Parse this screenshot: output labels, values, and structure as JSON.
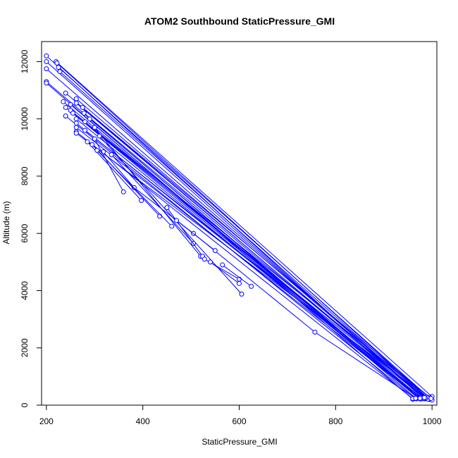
{
  "chart_data": {
    "type": "line",
    "title": "ATOM2 Southbound StaticPressure_GMI",
    "xlabel": "StaticPressure_GMI",
    "ylabel": "Altitude (m)",
    "xlim": [
      190,
      1010
    ],
    "ylim": [
      0,
      12700
    ],
    "x_ticks": [
      200,
      400,
      600,
      800,
      1000
    ],
    "y_ticks": [
      0,
      2000,
      4000,
      6000,
      8000,
      10000,
      12000
    ],
    "grid": false,
    "series_color": "#0000ff",
    "marker": "open-circle",
    "series": [
      {
        "points": [
          [
            200,
            12200
          ],
          [
            980,
            250
          ]
        ]
      },
      {
        "points": [
          [
            200,
            12000
          ],
          [
            985,
            220
          ]
        ]
      },
      {
        "points": [
          [
            200,
            11750
          ],
          [
            990,
            230
          ]
        ]
      },
      {
        "points": [
          [
            200,
            11300
          ],
          [
            970,
            260
          ]
        ]
      },
      {
        "points": [
          [
            200,
            11250
          ],
          [
            960,
            210
          ]
        ]
      },
      {
        "points": [
          [
            220,
            12000
          ],
          [
            1000,
            300
          ]
        ]
      },
      {
        "points": [
          [
            222,
            11950
          ],
          [
            995,
            200
          ]
        ]
      },
      {
        "points": [
          [
            225,
            11800
          ],
          [
            1000,
            180
          ]
        ]
      },
      {
        "points": [
          [
            228,
            11650
          ],
          [
            990,
            250
          ]
        ]
      },
      {
        "points": [
          [
            235,
            10600
          ],
          [
            978,
            240
          ]
        ]
      },
      {
        "points": [
          [
            240,
            10900
          ],
          [
            982,
            270
          ]
        ]
      },
      {
        "points": [
          [
            240,
            10400
          ],
          [
            975,
            230
          ]
        ]
      },
      {
        "points": [
          [
            240,
            10100
          ],
          [
            965,
            230
          ]
        ]
      },
      {
        "points": [
          [
            250,
            10500
          ],
          [
            968,
            220
          ]
        ]
      },
      {
        "points": [
          [
            250,
            10300
          ],
          [
            996,
            260
          ]
        ]
      },
      {
        "points": [
          [
            255,
            10200
          ],
          [
            988,
            240
          ]
        ]
      },
      {
        "points": [
          [
            262,
            10700
          ],
          [
            992,
            210
          ]
        ]
      },
      {
        "points": [
          [
            262,
            10550
          ],
          [
            985,
            260
          ]
        ]
      },
      {
        "points": [
          [
            262,
            10000
          ],
          [
            972,
            250
          ]
        ]
      },
      {
        "points": [
          [
            262,
            9850
          ],
          [
            980,
            225
          ]
        ]
      },
      {
        "points": [
          [
            262,
            9700
          ],
          [
            976,
            215
          ]
        ]
      },
      {
        "points": [
          [
            262,
            9550
          ],
          [
            960,
            230
          ]
        ]
      },
      {
        "points": [
          [
            262,
            9500
          ],
          [
            990,
            280
          ]
        ]
      },
      {
        "points": [
          [
            275,
            10400
          ],
          [
            998,
            235
          ]
        ]
      },
      {
        "points": [
          [
            278,
            10200
          ],
          [
            986,
            245
          ]
        ]
      },
      {
        "points": [
          [
            280,
            9900
          ],
          [
            978,
            255
          ]
        ]
      },
      {
        "points": [
          [
            280,
            9600
          ],
          [
            984,
            265
          ]
        ]
      },
      {
        "points": [
          [
            290,
            10000
          ],
          [
            975,
            240
          ]
        ]
      },
      {
        "points": [
          [
            300,
            9700
          ],
          [
            520,
            5200
          ]
        ]
      },
      {
        "points": [
          [
            310,
            9400
          ],
          [
            605,
            3880
          ]
        ]
      },
      {
        "points": [
          [
            318,
            8850
          ],
          [
            382,
            7600
          ],
          [
            505,
            6000
          ],
          [
            757,
            2550
          ],
          [
            966,
            240
          ]
        ]
      },
      {
        "points": [
          [
            300,
            9300
          ],
          [
            360,
            7450
          ]
        ]
      },
      {
        "points": [
          [
            285,
            9200
          ],
          [
            397,
            7150
          ]
        ]
      },
      {
        "points": [
          [
            295,
            9100
          ],
          [
            435,
            6600
          ]
        ]
      },
      {
        "points": [
          [
            305,
            8900
          ],
          [
            460,
            6250
          ]
        ]
      },
      {
        "points": [
          [
            335,
            8750
          ],
          [
            505,
            5650
          ]
        ]
      },
      {
        "points": [
          [
            450,
            6900
          ],
          [
            524,
            5200
          ]
        ]
      },
      {
        "points": [
          [
            528,
            5100
          ],
          [
            600,
            4400
          ]
        ]
      },
      {
        "points": [
          [
            540,
            5000
          ],
          [
            600,
            4250
          ]
        ]
      },
      {
        "points": [
          [
            470,
            6450
          ],
          [
            550,
            5400
          ]
        ]
      },
      {
        "points": [
          [
            565,
            4900
          ],
          [
            625,
            4150
          ]
        ]
      }
    ]
  }
}
